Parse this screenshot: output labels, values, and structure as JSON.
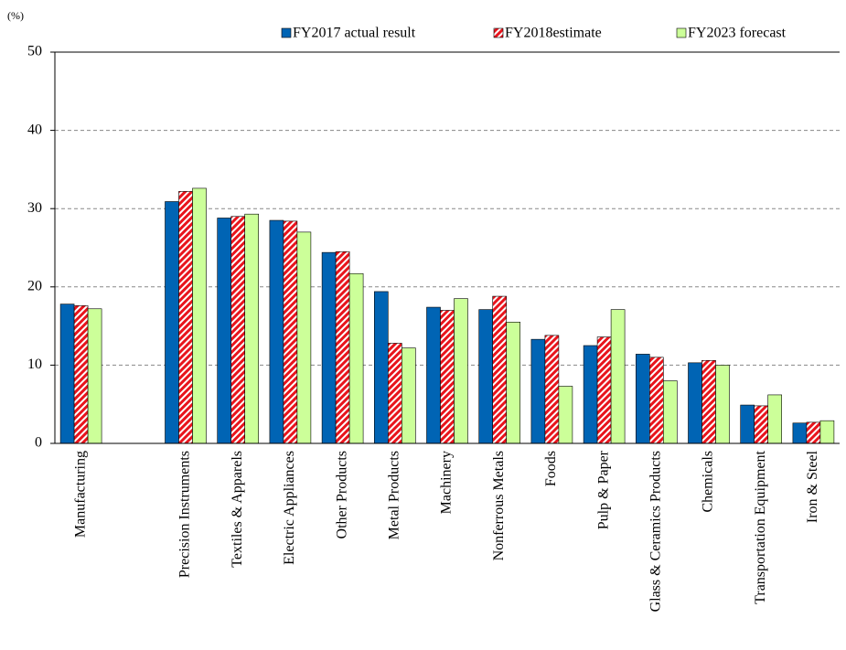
{
  "chart_data": {
    "type": "bar",
    "y_unit": "(%)",
    "categories": [
      "Manufacturing",
      null,
      "Precision Instruments",
      "Textiles & Apparels",
      "Electric Appliances",
      "Other Products",
      "Metal Products",
      "Machinery",
      "Nonferrous Metals",
      "Foods",
      "Pulp & Paper",
      "Glass & Ceramics Products",
      "Chemicals",
      "Transportation Equipment",
      "Iron & Steel"
    ],
    "series": [
      {
        "name": "FY2017 actual result",
        "color": "#0064b4",
        "values": [
          17.8,
          null,
          30.9,
          28.8,
          28.5,
          24.4,
          19.4,
          17.4,
          17.1,
          13.3,
          12.5,
          11.4,
          10.3,
          4.9,
          2.6
        ]
      },
      {
        "name": "FY2018estimate",
        "color": "#e8141c",
        "hatch": true,
        "values": [
          17.6,
          null,
          32.2,
          29.0,
          28.4,
          24.5,
          12.8,
          17.0,
          18.8,
          13.8,
          13.6,
          11.0,
          10.6,
          4.8,
          2.7
        ]
      },
      {
        "name": "FY2023 forecast",
        "color": "#ccff99",
        "values": [
          17.2,
          null,
          32.6,
          29.3,
          27.0,
          21.7,
          12.2,
          18.5,
          15.5,
          7.3,
          17.1,
          8.0,
          10.0,
          6.2,
          2.9
        ]
      }
    ],
    "ylim": [
      0,
      50
    ],
    "yticks": [
      0,
      10,
      20,
      30,
      40,
      50
    ],
    "grid": true,
    "legend": "top"
  }
}
